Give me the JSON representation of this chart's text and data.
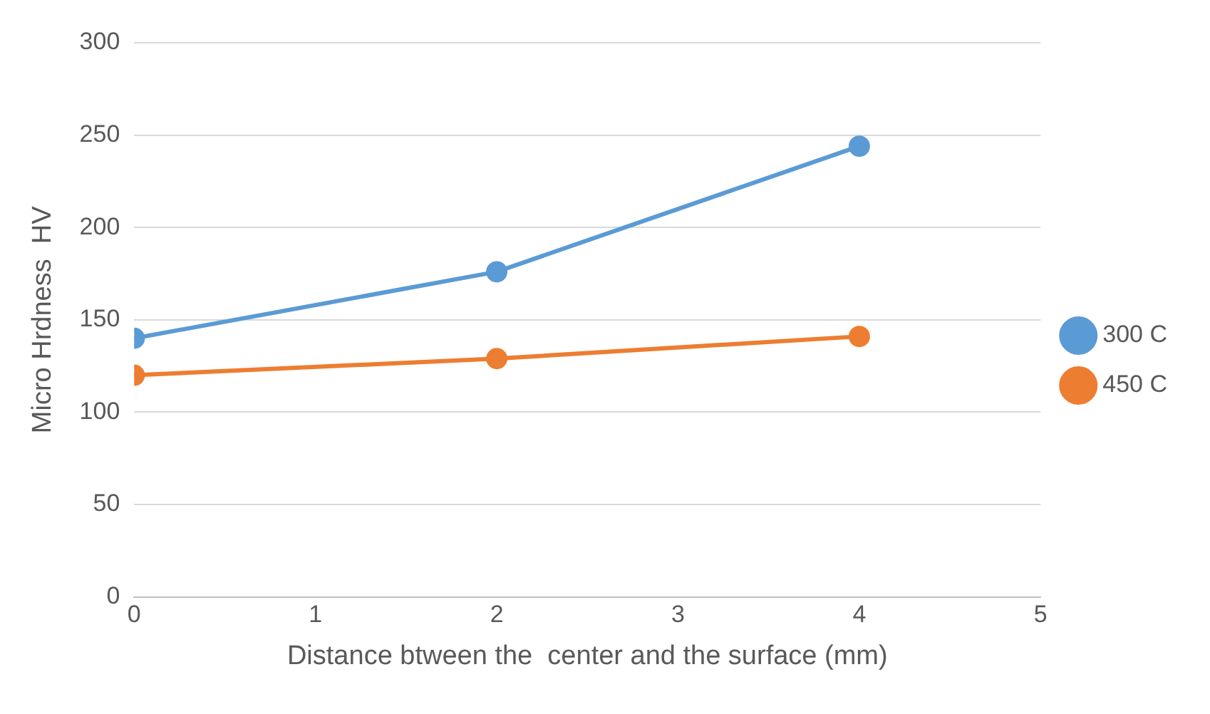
{
  "chart_data": {
    "type": "line",
    "xlabel": "Distance btween the  center and the surface (mm)",
    "ylabel": "Micro Hrdness  HV",
    "x": [
      0,
      2,
      4
    ],
    "series": [
      {
        "name": "300 C",
        "color": "#5b9bd5",
        "values": [
          140,
          176,
          244
        ]
      },
      {
        "name": "450 C",
        "color": "#ed7d31",
        "values": [
          120,
          129,
          141
        ]
      }
    ],
    "xlim": [
      0,
      5
    ],
    "xticks": [
      0,
      1,
      2,
      3,
      4,
      5
    ],
    "ylim": [
      0,
      300
    ],
    "yticks": [
      0,
      50,
      100,
      150,
      200,
      250,
      300
    ],
    "grid": "y",
    "legend": "right",
    "marker": "circle",
    "line_style": "solid"
  }
}
